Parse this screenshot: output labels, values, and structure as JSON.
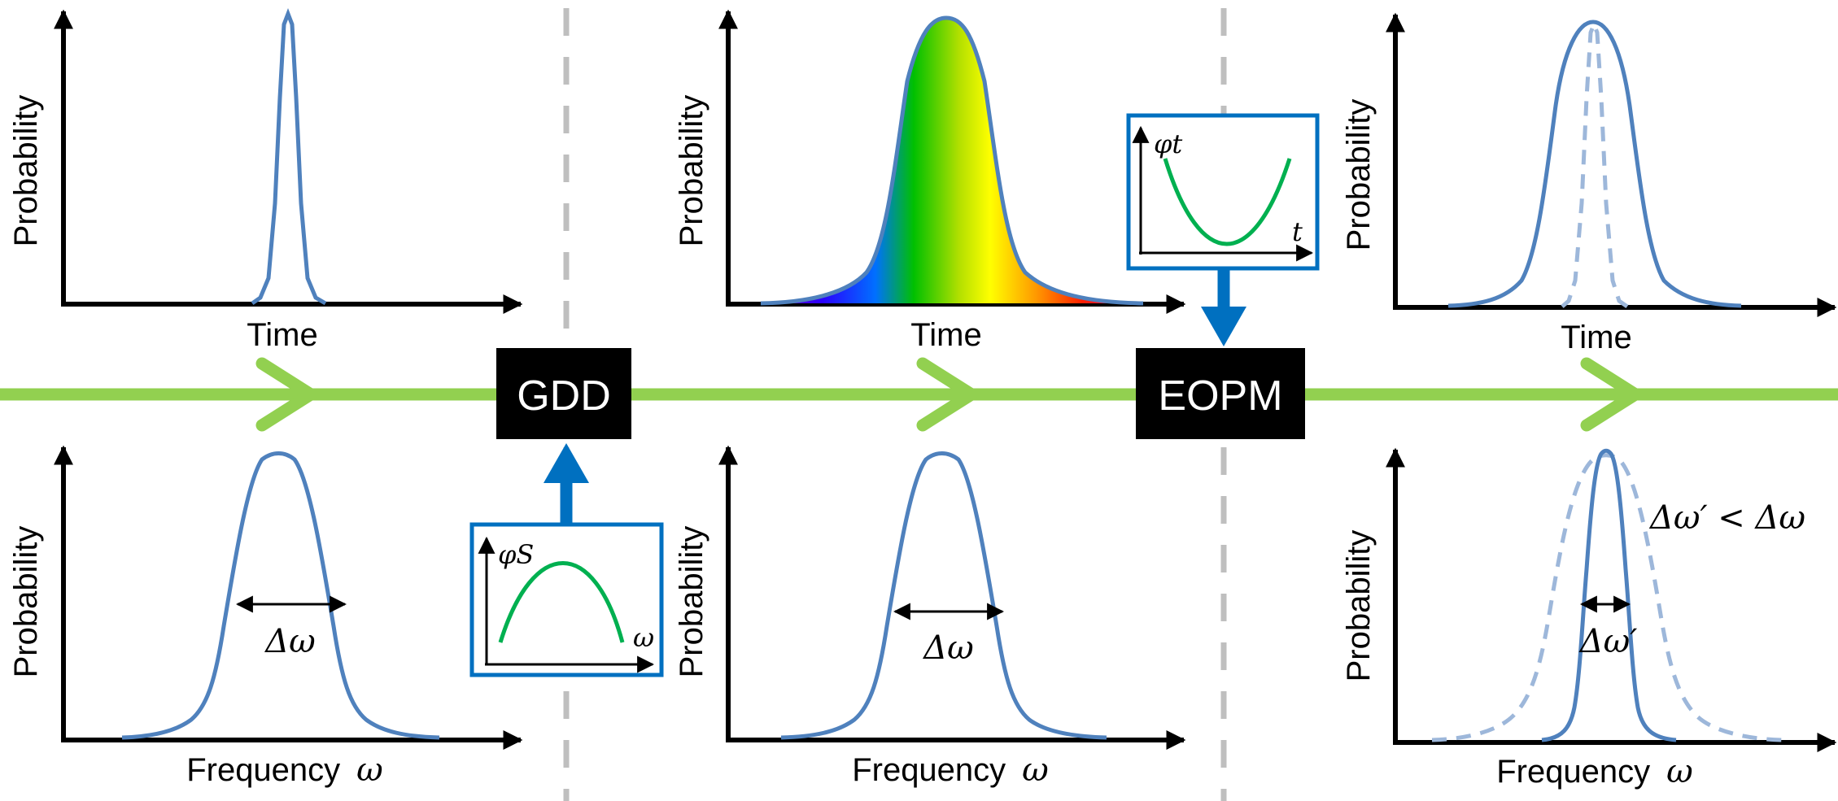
{
  "colors": {
    "beam": "#92D050",
    "curve": "#4F81BD",
    "curve_faint": "#9DB7DA",
    "phase": "#00B050",
    "control": "#0070C0",
    "divider": "#BFBFBF",
    "box": "#000000"
  },
  "stages": [
    {
      "time_plot": {
        "ylabel": "Probability",
        "xlabel": "Time"
      },
      "freq_plot": {
        "ylabel": "Probability",
        "xlabel": "Frequency",
        "xvar": "ω",
        "width_label": "Δω"
      }
    },
    {
      "time_plot": {
        "ylabel": "Probability",
        "xlabel": "Time"
      },
      "freq_plot": {
        "ylabel": "Probability",
        "xlabel": "Frequency",
        "xvar": "ω",
        "width_label": "Δω"
      }
    },
    {
      "time_plot": {
        "ylabel": "Probability",
        "xlabel": "Time"
      },
      "freq_plot": {
        "ylabel": "Probability",
        "xlabel": "Frequency",
        "xvar": "ω",
        "width_label": "Δω′",
        "comparison": "Δω′ < Δω"
      }
    }
  ],
  "devices": [
    {
      "label": "GDD",
      "inset": {
        "ylabel": "φS",
        "xlabel": "ω",
        "icon": "concave-down-parabola-icon"
      }
    },
    {
      "label": "EOPM",
      "inset": {
        "ylabel": "φt",
        "xlabel": "t",
        "icon": "concave-up-parabola-icon"
      }
    }
  ]
}
